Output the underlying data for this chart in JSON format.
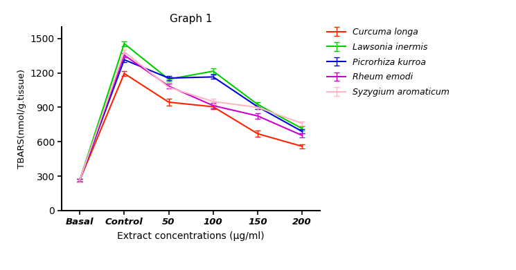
{
  "title": "Graph 1",
  "xlabel": "Extract concentrations (μg/ml)",
  "ylabel": "TBARS(nmol/g.tissue)",
  "x_labels": [
    "Basal",
    "Control",
    "50",
    "100",
    "150",
    "200"
  ],
  "x_positions": [
    0,
    1,
    2,
    3,
    4,
    5
  ],
  "ylim": [
    0,
    1600
  ],
  "yticks": [
    0,
    300,
    600,
    900,
    1200,
    1500
  ],
  "series": [
    {
      "label": "Curcuma longa",
      "color": "#FF2200",
      "values": [
        265,
        1195,
        945,
        905,
        670,
        560
      ],
      "errors": [
        12,
        22,
        28,
        20,
        28,
        18
      ]
    },
    {
      "label": "Lawsonia inermis",
      "color": "#00CC00",
      "values": [
        265,
        1455,
        1145,
        1215,
        925,
        715
      ],
      "errors": [
        12,
        22,
        18,
        22,
        22,
        18
      ]
    },
    {
      "label": "Picrorhiza kurroa",
      "color": "#0000DD",
      "values": [
        265,
        1315,
        1155,
        1165,
        905,
        690
      ],
      "errors": [
        12,
        22,
        18,
        18,
        18,
        18
      ]
    },
    {
      "label": "Rheum emodi",
      "color": "#CC00CC",
      "values": [
        265,
        1355,
        1085,
        915,
        825,
        655
      ],
      "errors": [
        12,
        18,
        22,
        25,
        22,
        18
      ]
    },
    {
      "label": "Syzygium aromaticum",
      "color": "#FFB6C1",
      "values": [
        265,
        1385,
        1075,
        950,
        900,
        760
      ],
      "errors": [
        18,
        18,
        18,
        22,
        22,
        18
      ]
    }
  ]
}
